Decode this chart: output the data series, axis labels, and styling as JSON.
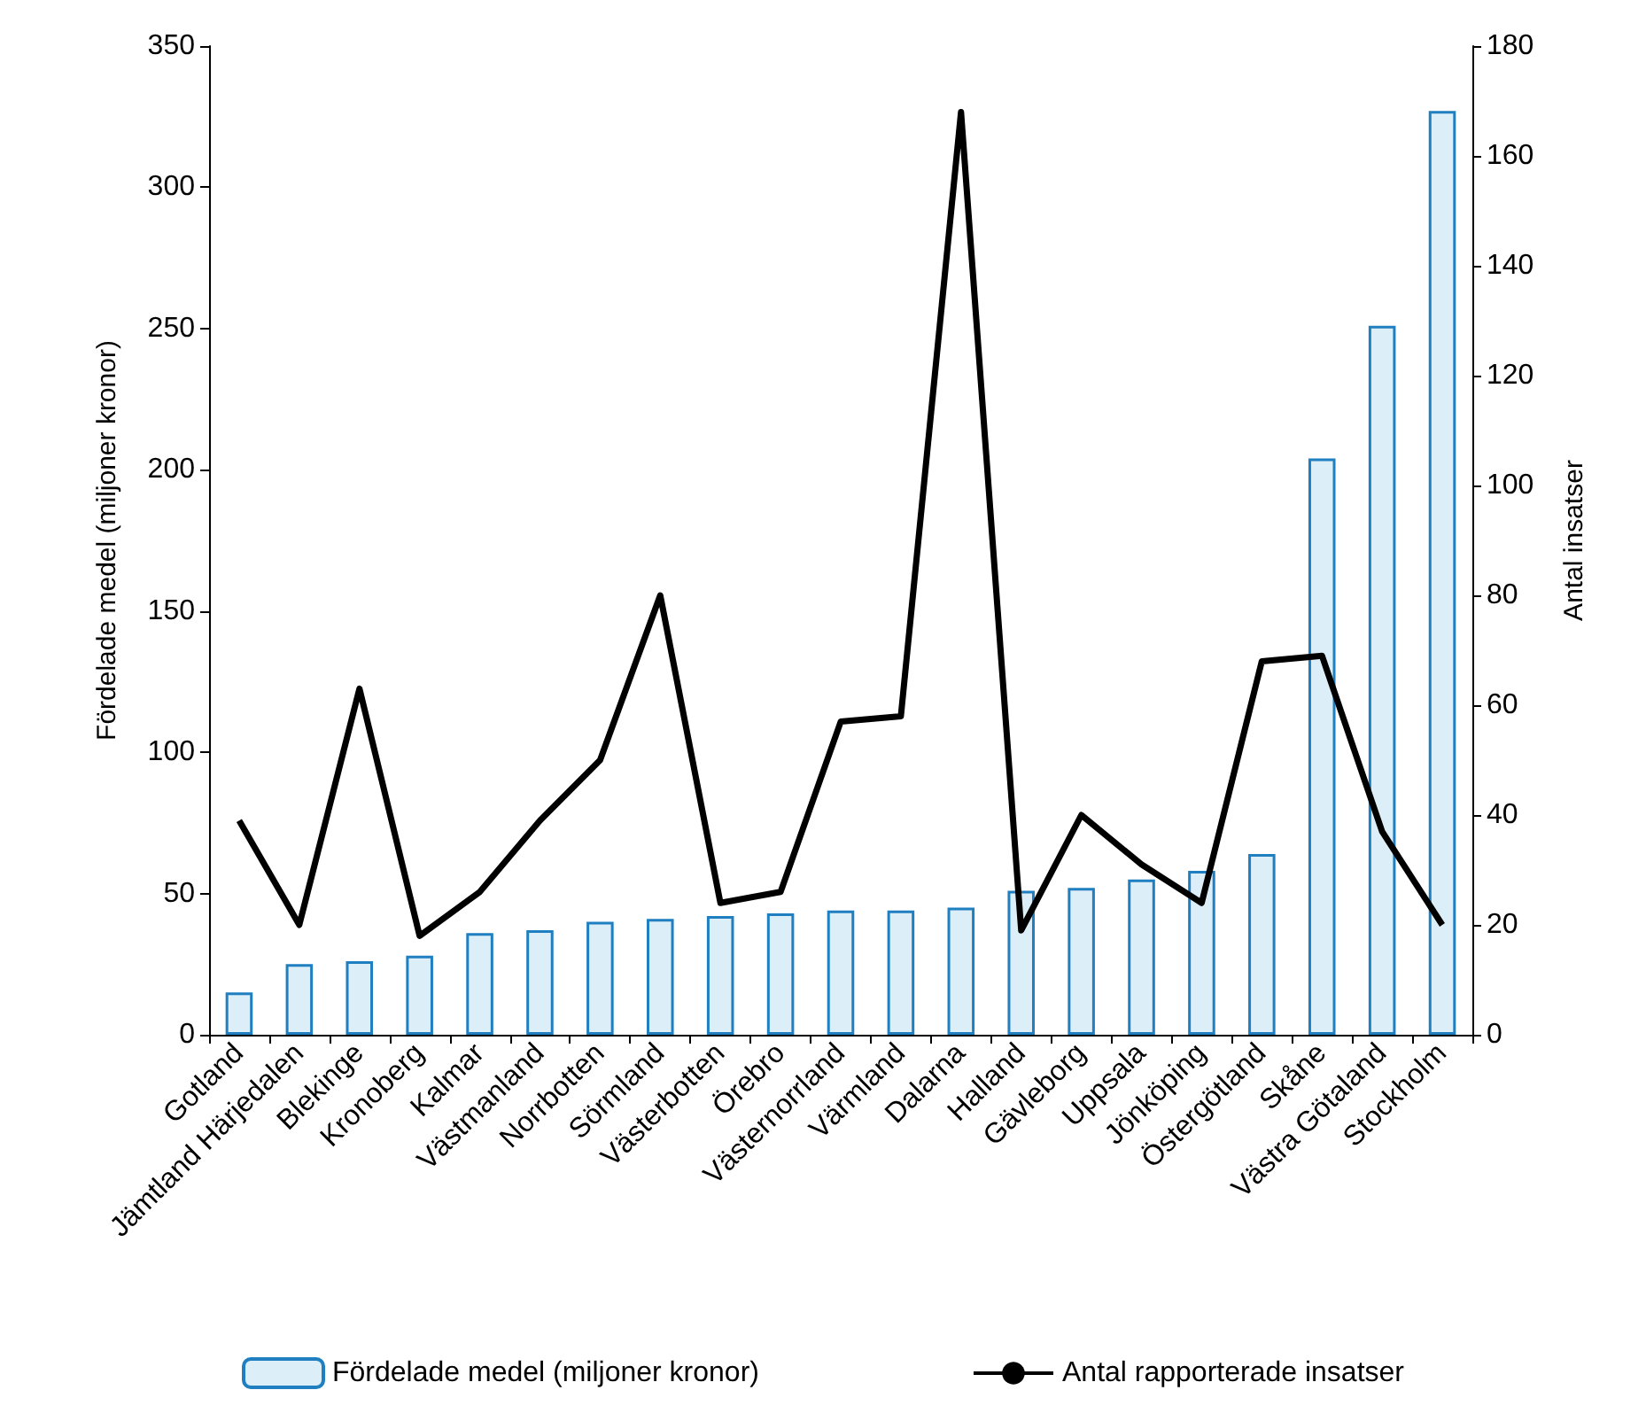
{
  "chart_data": {
    "type": "bar",
    "ylabel": "Fördelade medel (miljoner kronor)",
    "y2label": "Antal insatser",
    "categories": [
      "Gotland",
      "Jämtland Härjedalen",
      "Blekinge",
      "Kronoberg",
      "Kalmar",
      "Västmanland",
      "Norrbotten",
      "Sörmland",
      "Västerbotten",
      "Örebro",
      "Västernorrland",
      "Värmland",
      "Dalarna",
      "Halland",
      "Gävleborg",
      "Uppsala",
      "Jönköping",
      "Östergötland",
      "Skåne",
      "Västra Götaland",
      "Stockholm"
    ],
    "series": [
      {
        "name": "Fördelade medel (miljoner kronor)",
        "color": "#dceef8",
        "values": [
          15,
          25,
          26,
          28,
          36,
          37,
          40,
          41,
          42,
          43,
          44,
          44,
          45,
          51,
          52,
          55,
          58,
          64,
          204,
          251,
          327
        ]
      },
      {
        "name": "Antal rapporterade insatser",
        "type": "line",
        "axis": "y2",
        "color": "#000000",
        "values": [
          39,
          20,
          63,
          18,
          26,
          39,
          50,
          80,
          24,
          26,
          57,
          58,
          168,
          19,
          40,
          31,
          24,
          68,
          69,
          37,
          20
        ]
      }
    ],
    "ylim": [
      0,
      350
    ],
    "yticks": [
      0,
      50,
      100,
      150,
      200,
      250,
      300,
      350
    ],
    "y2lim": [
      0,
      180
    ],
    "y2ticks": [
      0,
      20,
      40,
      60,
      80,
      100,
      120,
      140,
      160,
      180
    ],
    "legend": "bottom",
    "marker": "none",
    "line_style": "solid"
  }
}
